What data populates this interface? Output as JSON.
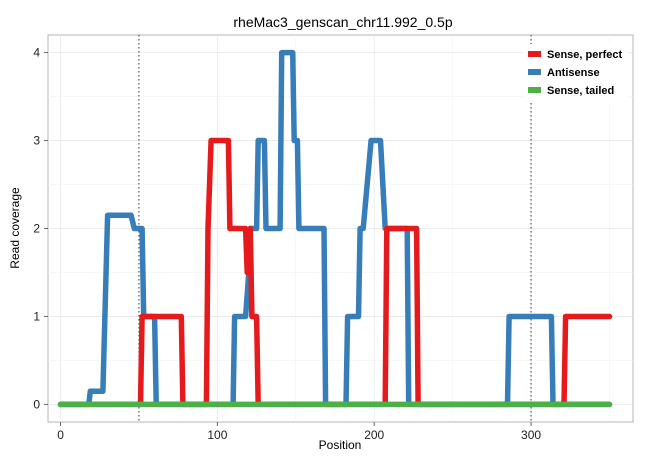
{
  "chart_data": {
    "type": "line",
    "title": "rheMac3_genscan_chr11.992_0.5p",
    "xlabel": "Position",
    "ylabel": "Read coverage",
    "xlim": [
      -8,
      365
    ],
    "ylim": [
      -0.2,
      4.2
    ],
    "xticks": [
      0,
      100,
      200,
      300
    ],
    "yticks": [
      0,
      1,
      2,
      3,
      4
    ],
    "vlines": [
      50,
      300
    ],
    "grid": true,
    "legend_position": "top-right",
    "series": [
      {
        "name": "Sense, perfect",
        "color": "#E41A1C",
        "x": [
          0,
          51,
          52,
          77,
          78,
          93,
          94,
          96,
          107,
          108,
          118,
          119,
          121,
          122,
          125,
          126,
          207,
          208,
          227,
          228,
          321,
          322,
          350
        ],
        "y": [
          0,
          0,
          1,
          1,
          0,
          0,
          2,
          3,
          3,
          2,
          2,
          1.5,
          2,
          1,
          1,
          0,
          0,
          2,
          2,
          0,
          0,
          1,
          1
        ]
      },
      {
        "name": "Antisense",
        "color": "#377EB8",
        "x": [
          0,
          18,
          19,
          27,
          30,
          45,
          47,
          52,
          53,
          60,
          61,
          110,
          111,
          118,
          120,
          121,
          125,
          126,
          130,
          131,
          140,
          141,
          148,
          149,
          151,
          152,
          168,
          169,
          182,
          183,
          190,
          191,
          193,
          198,
          204,
          207,
          208,
          221,
          222,
          285,
          286,
          313,
          314,
          350
        ],
        "y": [
          0,
          0,
          0.15,
          0.15,
          2.15,
          2.15,
          2,
          2,
          1,
          1,
          0,
          0,
          1,
          1,
          1.5,
          2,
          2,
          3,
          3,
          2,
          2,
          4,
          4,
          3,
          3,
          2,
          2,
          0,
          0,
          1,
          1,
          2,
          2,
          3,
          3,
          2,
          2,
          2,
          0,
          0,
          1,
          1,
          0,
          0
        ]
      },
      {
        "name": "Sense, tailed",
        "color": "#4DAF4A",
        "x": [
          0,
          350
        ],
        "y": [
          0,
          0
        ]
      }
    ]
  }
}
